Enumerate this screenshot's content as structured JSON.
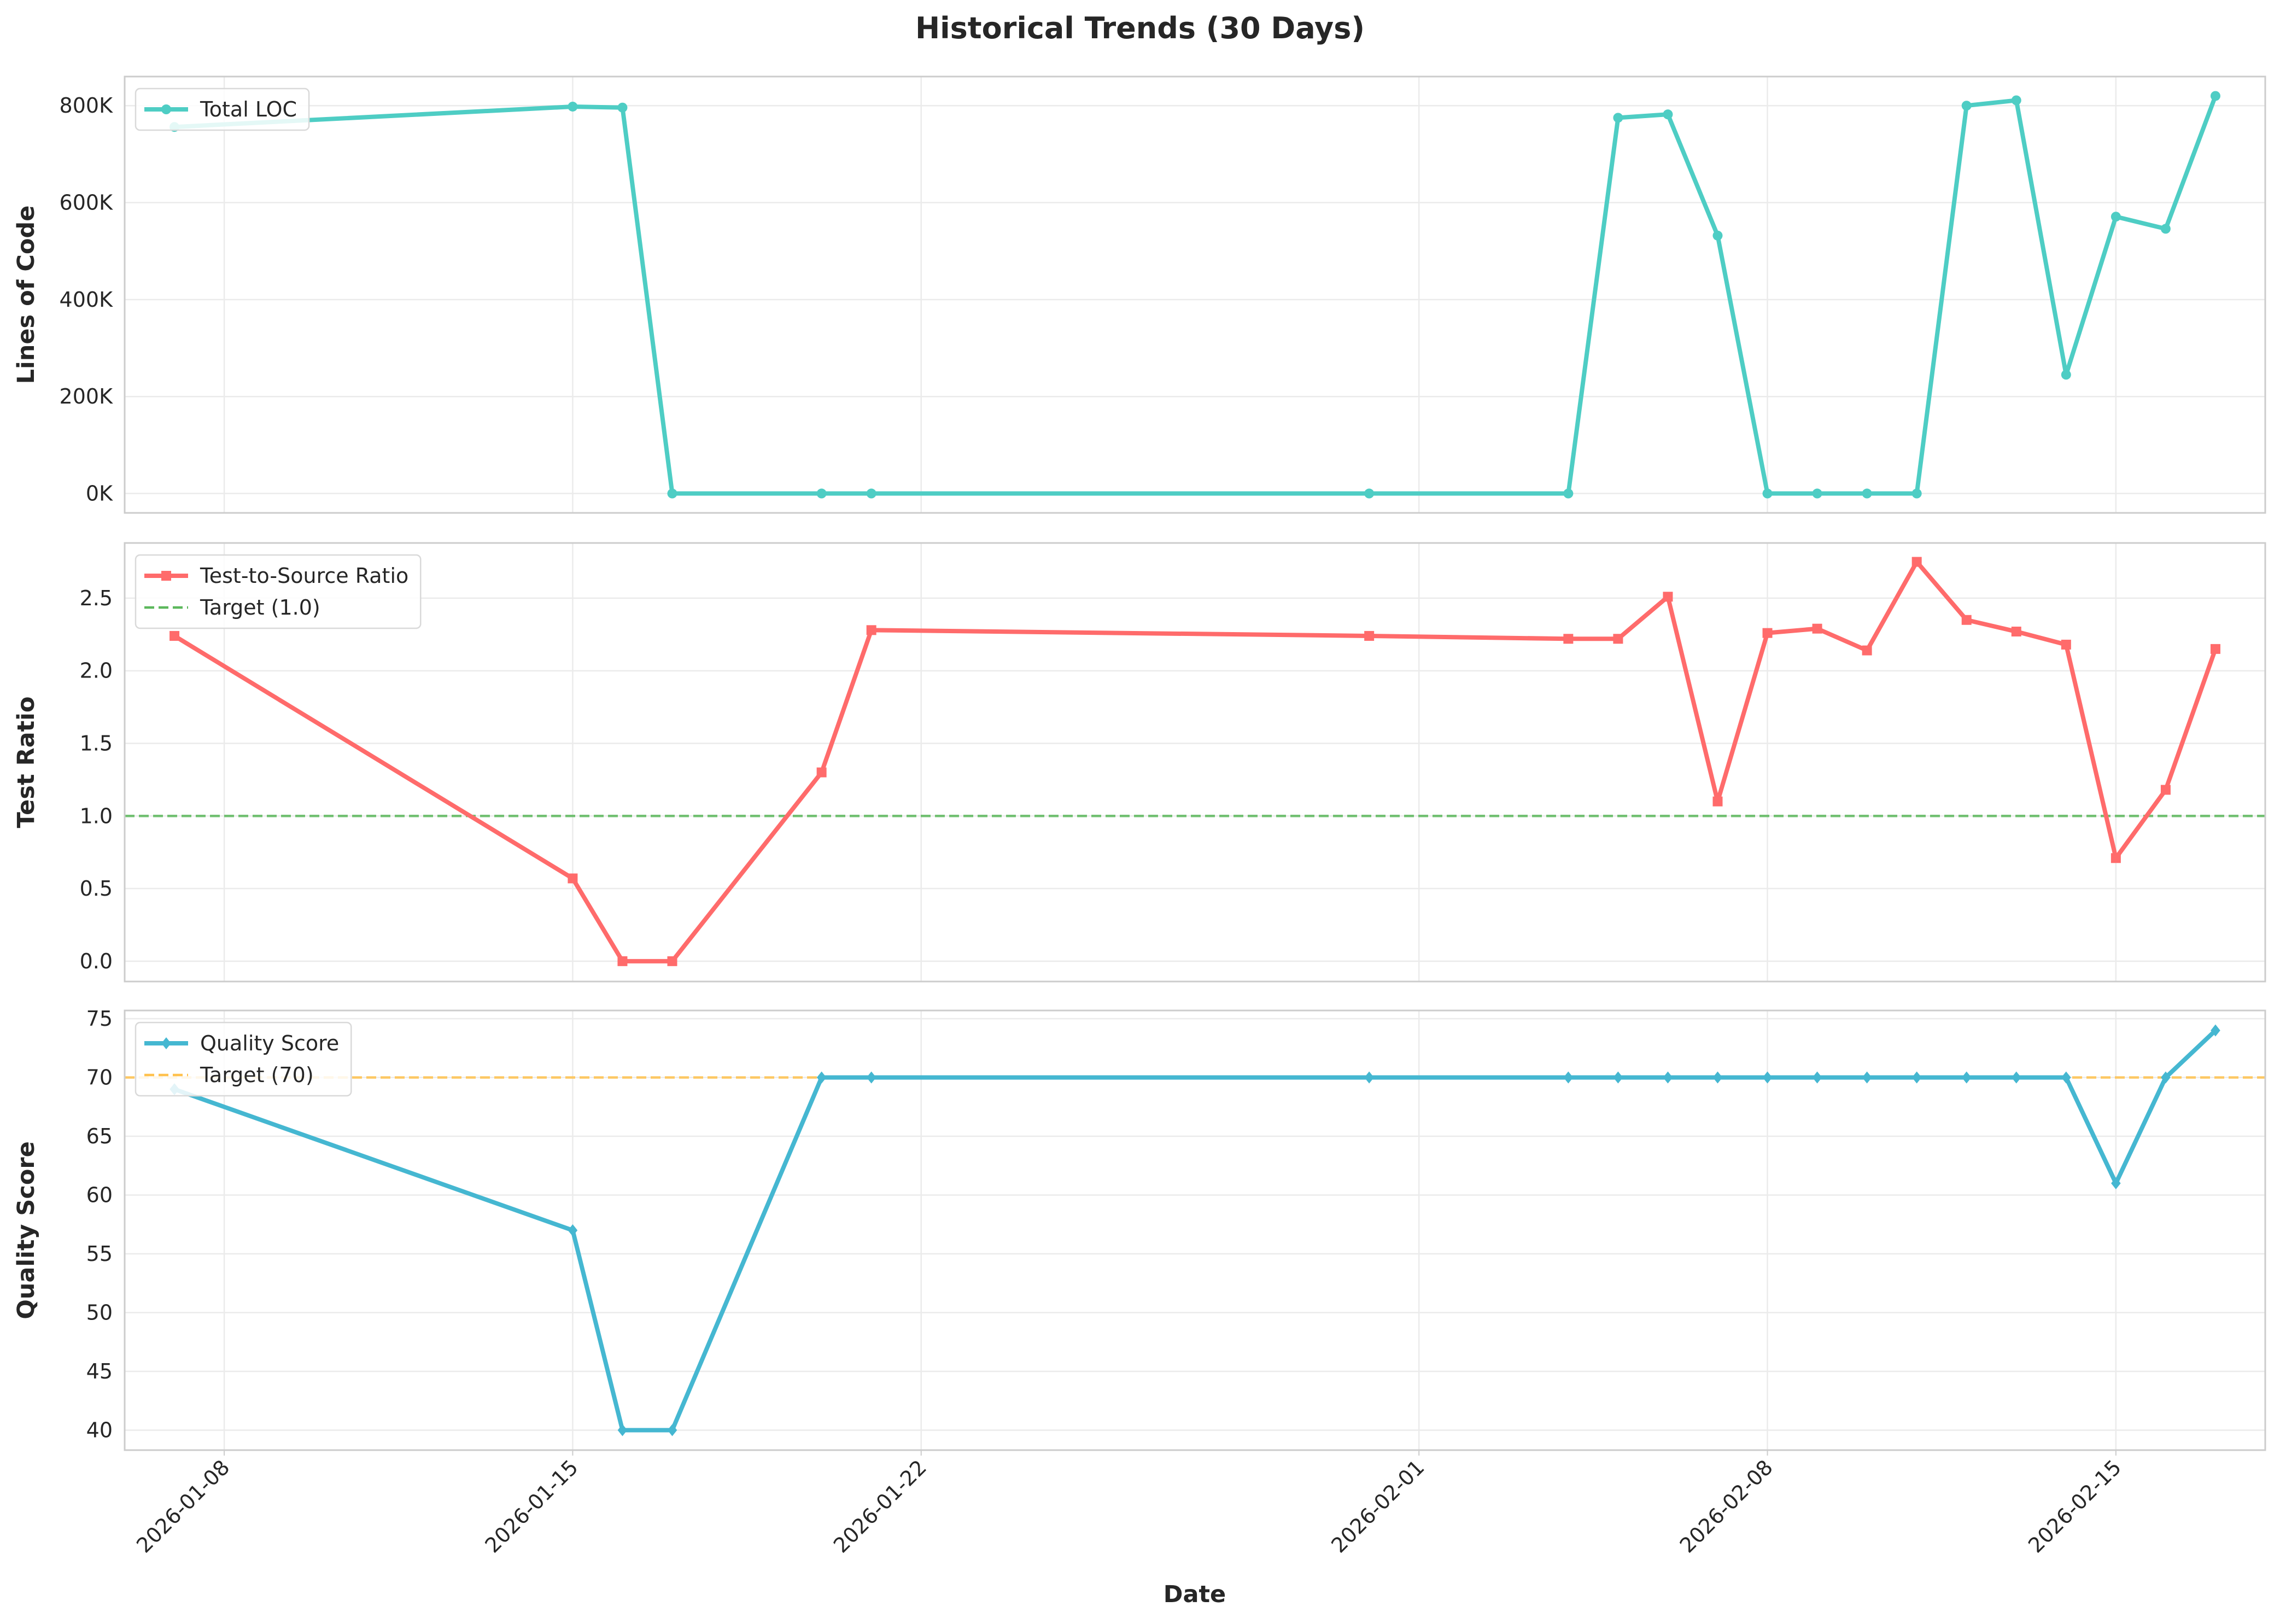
{
  "title": "Historical Trends (30 Days)",
  "xlabel": "Date",
  "chart_data": [
    {
      "type": "line",
      "ylabel": "Lines of Code",
      "ylim": [
        -40000,
        860000
      ],
      "y_ticks": [
        0,
        200000,
        400000,
        600000,
        800000
      ],
      "y_tick_labels": [
        "0K",
        "200K",
        "400K",
        "600K",
        "800K"
      ],
      "grid": true,
      "legend_position": "top-left",
      "series": [
        {
          "name": "Total LOC",
          "color": "#4ecdc4",
          "marker": "circle",
          "x": [
            "2026-01-07",
            "2026-01-15",
            "2026-01-16",
            "2026-01-17",
            "2026-01-20",
            "2026-01-21",
            "2026-01-31",
            "2026-02-04",
            "2026-02-05",
            "2026-02-06",
            "2026-02-07",
            "2026-02-08",
            "2026-02-09",
            "2026-02-10",
            "2026-02-11",
            "2026-02-12",
            "2026-02-13",
            "2026-02-14",
            "2026-02-15",
            "2026-02-16",
            "2026-02-17"
          ],
          "y": [
            756000,
            798000,
            796000,
            0,
            0,
            0,
            0,
            0,
            775000,
            782000,
            532000,
            0,
            0,
            0,
            0,
            800000,
            811000,
            245000,
            571000,
            546000,
            820000
          ]
        }
      ]
    },
    {
      "type": "line",
      "ylabel": "Test Ratio",
      "ylim": [
        -0.14,
        2.88
      ],
      "y_ticks": [
        0,
        0.5,
        1.0,
        1.5,
        2.0,
        2.5
      ],
      "y_tick_labels": [
        "0.0",
        "0.5",
        "1.0",
        "1.5",
        "2.0",
        "2.5"
      ],
      "grid": true,
      "legend_position": "top-left",
      "series": [
        {
          "name": "Test-to-Source Ratio",
          "color": "#ff6b6b",
          "marker": "square",
          "x": [
            "2026-01-07",
            "2026-01-15",
            "2026-01-16",
            "2026-01-17",
            "2026-01-20",
            "2026-01-21",
            "2026-01-31",
            "2026-02-04",
            "2026-02-05",
            "2026-02-06",
            "2026-02-07",
            "2026-02-08",
            "2026-02-09",
            "2026-02-10",
            "2026-02-11",
            "2026-02-12",
            "2026-02-13",
            "2026-02-14",
            "2026-02-15",
            "2026-02-16",
            "2026-02-17"
          ],
          "y": [
            2.24,
            0.57,
            0.0,
            0.0,
            1.3,
            2.28,
            2.24,
            2.22,
            2.22,
            2.51,
            1.1,
            2.26,
            2.29,
            2.14,
            2.75,
            2.35,
            2.27,
            2.18,
            0.71,
            1.18,
            2.15
          ]
        }
      ],
      "reference_line": {
        "name": "Target (1.0)",
        "y": 1.0,
        "color": "#5cb85c",
        "style": "dashed"
      }
    },
    {
      "type": "line",
      "ylabel": "Quality Score",
      "ylim": [
        38.3,
        75.7
      ],
      "y_ticks": [
        40,
        45,
        50,
        55,
        60,
        65,
        70,
        75
      ],
      "y_tick_labels": [
        "40",
        "45",
        "50",
        "55",
        "60",
        "65",
        "70",
        "75"
      ],
      "grid": true,
      "legend_position": "top-left",
      "series": [
        {
          "name": "Quality Score",
          "color": "#45b7d1",
          "marker": "diamond",
          "x": [
            "2026-01-07",
            "2026-01-15",
            "2026-01-16",
            "2026-01-17",
            "2026-01-20",
            "2026-01-21",
            "2026-01-31",
            "2026-02-04",
            "2026-02-05",
            "2026-02-06",
            "2026-02-07",
            "2026-02-08",
            "2026-02-09",
            "2026-02-10",
            "2026-02-11",
            "2026-02-12",
            "2026-02-13",
            "2026-02-14",
            "2026-02-15",
            "2026-02-16",
            "2026-02-17"
          ],
          "y": [
            69,
            57,
            40,
            40,
            70,
            70,
            70,
            70,
            70,
            70,
            70,
            70,
            70,
            70,
            70,
            70,
            70,
            70,
            61,
            70,
            74
          ]
        }
      ],
      "reference_line": {
        "name": "Target (70)",
        "y": 70,
        "color": "#ffc14d",
        "style": "dashed"
      }
    }
  ],
  "x_axis": {
    "range": [
      "2026-01-06",
      "2026-02-18"
    ],
    "ticks": [
      "2026-01-08",
      "2026-01-15",
      "2026-01-22",
      "2026-02-01",
      "2026-02-08",
      "2026-02-15"
    ],
    "tick_labels": [
      "2026-01-08",
      "2026-01-15",
      "2026-01-22",
      "2026-02-01",
      "2026-02-08",
      "2026-02-15"
    ]
  }
}
